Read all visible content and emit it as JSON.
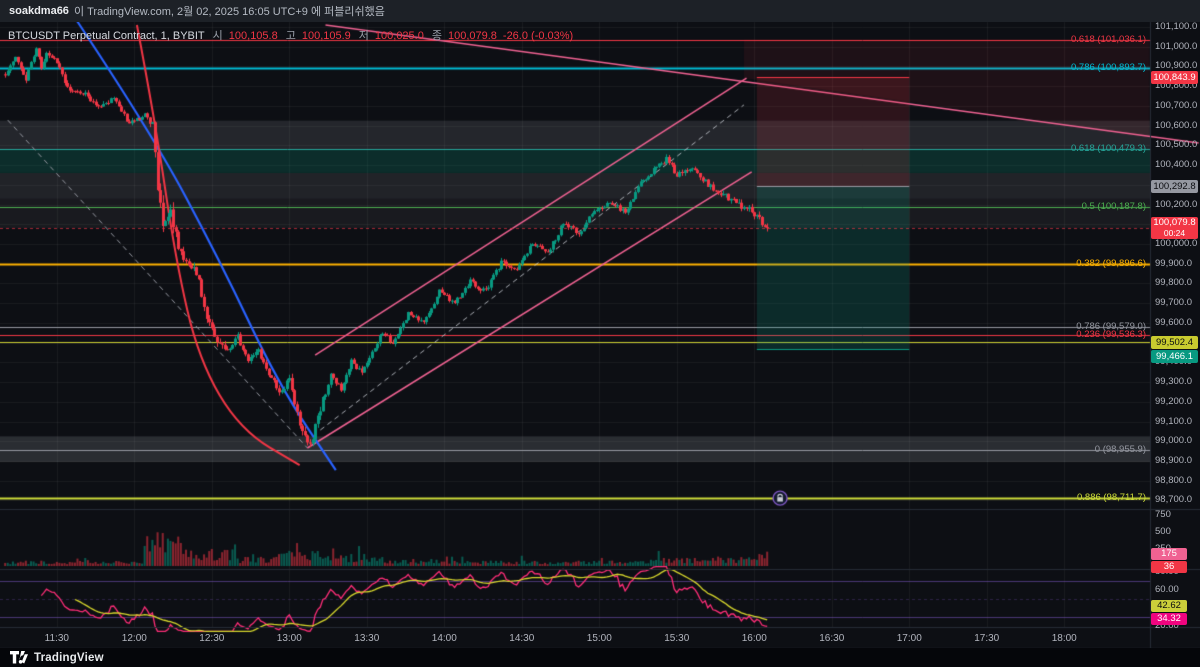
{
  "publish_bar": {
    "username": "soakdma66",
    "text": "이 TradingView.com, 2월 02, 2025 16:05 UTC+9 에 퍼블리쉬했음"
  },
  "legend": {
    "title": "BTCUSDT Perpetual Contract, 1, BYBIT",
    "open_label": "시",
    "open": "100,105.8",
    "high_label": "고",
    "high": "100,105.9",
    "low_label": "저",
    "low": "100,025.0",
    "close_label": "종",
    "close": "100,079.8",
    "change": "-26.0 (-0.03%)"
  },
  "footer": {
    "brand": "TradingView"
  },
  "icons": {
    "lock": "lock-icon",
    "logo": "tradingview-logo"
  },
  "chart_data": {
    "type": "candlestick",
    "symbol": "BTCUSDT",
    "interval": "1",
    "exchange": "BYBIT",
    "ohlc": {
      "open": 100105.8,
      "high": 100105.9,
      "low": 100025.0,
      "close": 100079.8,
      "change": -26.0,
      "change_pct": -0.03
    },
    "time_axis": {
      "labels": [
        "11:30",
        "12:00",
        "12:30",
        "13:00",
        "13:30",
        "14:00",
        "14:30",
        "15:00",
        "15:30",
        "16:00",
        "16:30",
        "17:00",
        "17:30",
        "18:00"
      ],
      "tlim": [
        -22,
        423.2
      ]
    },
    "price_axis": {
      "ylim": [
        98672,
        101110
      ],
      "labels": [
        "101,100.0",
        "101,000.0",
        "100,900.0",
        "100,800.0",
        "100,700.0",
        "100,600.0",
        "100,500.0",
        "100,400.0",
        "100,300.0",
        "100,200.0",
        "100,100.0",
        "100,000.0",
        "99,900.0",
        "99,800.0",
        "99,700.0",
        "99,600.0",
        "99,500.0",
        "99,400.0",
        "99,300.0",
        "99,200.0",
        "99,100.0",
        "99,000.0",
        "98,900.0",
        "98,800.0",
        "98,700.0"
      ],
      "badges": [
        {
          "label": "100,843.9",
          "price": 100843.9,
          "bg": "#f23645",
          "fg": "#ffffff"
        },
        {
          "label": "100,292.8",
          "price": 100292.8,
          "bg": "#9598a1",
          "fg": "#0b0c10"
        },
        {
          "label": "100,079.8",
          "price": 100079.8,
          "bg": "#f23645",
          "fg": "#ffffff",
          "countdown": "00:24"
        },
        {
          "label": "99,502.4",
          "price": 99502.4,
          "bg": "#c9cb2f",
          "fg": "#0b0c10"
        },
        {
          "label": "99,466.1",
          "price": 99466.1,
          "bg": "#089981",
          "fg": "#ffffff"
        }
      ]
    },
    "volume_axis": {
      "max": 800,
      "labels": [
        "750",
        "500",
        "250"
      ],
      "values": [
        750,
        500,
        250
      ],
      "badges": [
        {
          "label": "175",
          "v": 175,
          "bg": "#f06292",
          "fg": "#ffffff"
        },
        {
          "label": "36",
          "v": 36,
          "bg": "#f23645",
          "fg": "#ffffff"
        }
      ]
    },
    "rsi_axis": {
      "labels": [
        "80.00",
        "60.00",
        "40.00",
        "20.00"
      ],
      "values": [
        80,
        60,
        40,
        20
      ],
      "badges": [
        {
          "label": "42.62",
          "r": 42.62,
          "bg": "#cbcf3a",
          "fg": "#0b0c10"
        },
        {
          "label": "34.32",
          "r": 34.32,
          "bg": "#f0047f",
          "fg": "#ffffff"
        }
      ]
    },
    "fib_levels": [
      {
        "label": "0.618 (101,036.1)",
        "price": 101036.1,
        "color": "#f23645",
        "width": 1
      },
      {
        "label": "0.786 (100,893.7)",
        "price": 100893.7,
        "color": "#00bcd4",
        "width": 2
      },
      {
        "label": "0.618 (100,479.3)",
        "price": 100479.3,
        "color": "#26a69a",
        "width": 1
      },
      {
        "label": "0.5 (100,187.8)",
        "price": 100187.8,
        "color": "#4caf50",
        "width": 1
      },
      {
        "label": "0.382 (99,896.6)",
        "price": 99896.6,
        "color": "#ffb300",
        "width": 2
      },
      {
        "label": "0.786 (99,579.0)",
        "price": 99579.0,
        "color": "#9598a1",
        "width": 1
      },
      {
        "label": "0.236 (99,536.3)",
        "price": 99536.3,
        "color": "#f23645",
        "width": 1
      },
      {
        "label": "0 (98,955.9)",
        "price": 98955.9,
        "color": "#9598a1",
        "width": 1
      },
      {
        "label": "0.886 (98,711.7)",
        "price": 98711.7,
        "color": "#cddc39",
        "width": 2
      }
    ],
    "extra_lines": [
      {
        "price": 99502.4,
        "color": "#c9cb2f",
        "width": 1
      }
    ],
    "last_price": {
      "value": 100079.8,
      "color": "#f23645"
    },
    "zones": [
      {
        "from": 100479.3,
        "to": 100625,
        "color": "rgba(178,181,190,0.14)"
      },
      {
        "from": 100360,
        "to": 100479.3,
        "color": "rgba(8,153,129,0.22)"
      },
      {
        "from": 100230,
        "to": 100360,
        "color": "rgba(178,181,190,0.12)"
      },
      {
        "from": 100080,
        "to": 100230,
        "color": "rgba(178,181,190,0.07)"
      },
      {
        "from": 98895,
        "to": 99025,
        "color": "rgba(178,181,190,0.18)"
      }
    ],
    "position_tool": {
      "t_start": 271,
      "t_end": 330,
      "stop": 100843.9,
      "entry": 100292.8,
      "target": 99466.1,
      "stop_fill": "rgba(242,54,69,0.14)",
      "target_fill": "rgba(8,153,129,0.20)"
    },
    "drawings": {
      "channel": {
        "color": "#f06292",
        "upper": [
          [
            100,
            99437
          ],
          [
            267,
            100841
          ]
        ],
        "lower": [
          [
            97,
            98966
          ],
          [
            269,
            100365
          ]
        ],
        "median_dashed": [
          [
            102,
            99057
          ],
          [
            266,
            100705
          ]
        ]
      },
      "descending_dashed": [
        [
          -19,
          100628
        ],
        [
          97,
          98966
        ]
      ],
      "descending_trendline": {
        "color": "#f06292",
        "points": [
          [
            104,
            101110
          ],
          [
            442,
            100512
          ]
        ]
      },
      "wedge_fill": {
        "color": "rgba(242,54,69,0.08)",
        "points": [
          [
            266,
            101036
          ],
          [
            423,
            101036
          ],
          [
            423,
            100546
          ],
          [
            266,
            100841
          ]
        ]
      },
      "blue_curve": {
        "color": "#2962ff",
        "points": [
          [
            5,
            101186
          ],
          [
            36,
            100578
          ],
          [
            63,
            99919
          ],
          [
            86,
            99285
          ],
          [
            108,
            98854
          ]
        ]
      },
      "red_curve": {
        "color": "#f23645",
        "points": [
          [
            31,
            101110
          ],
          [
            38,
            100629
          ],
          [
            46,
            99919
          ],
          [
            55,
            99412
          ],
          [
            71,
            99057
          ],
          [
            94,
            98879
          ]
        ]
      }
    },
    "lock_icon": {
      "t": 280,
      "price": 98711.7
    },
    "price_path_anchors": [
      [
        -20,
        100860
      ],
      [
        -16,
        100950
      ],
      [
        -12,
        100840
      ],
      [
        -8,
        101000
      ],
      [
        -6,
        100900
      ],
      [
        -4,
        100960
      ],
      [
        0,
        100920
      ],
      [
        4,
        100790
      ],
      [
        10,
        100770
      ],
      [
        16,
        100690
      ],
      [
        22,
        100740
      ],
      [
        28,
        100610
      ],
      [
        34,
        100650
      ],
      [
        37,
        100600
      ],
      [
        39,
        100300
      ],
      [
        41,
        100120
      ],
      [
        44,
        100160
      ],
      [
        48,
        99950
      ],
      [
        54,
        99860
      ],
      [
        58,
        99620
      ],
      [
        62,
        99500
      ],
      [
        66,
        99450
      ],
      [
        70,
        99530
      ],
      [
        74,
        99400
      ],
      [
        78,
        99460
      ],
      [
        82,
        99340
      ],
      [
        86,
        99260
      ],
      [
        90,
        99310
      ],
      [
        94,
        99080
      ],
      [
        98,
        98985
      ],
      [
        102,
        99160
      ],
      [
        106,
        99350
      ],
      [
        110,
        99260
      ],
      [
        114,
        99410
      ],
      [
        118,
        99340
      ],
      [
        122,
        99460
      ],
      [
        126,
        99550
      ],
      [
        130,
        99500
      ],
      [
        136,
        99650
      ],
      [
        142,
        99600
      ],
      [
        148,
        99760
      ],
      [
        154,
        99700
      ],
      [
        160,
        99810
      ],
      [
        166,
        99760
      ],
      [
        172,
        99910
      ],
      [
        178,
        99860
      ],
      [
        184,
        100010
      ],
      [
        190,
        99950
      ],
      [
        196,
        100110
      ],
      [
        202,
        100060
      ],
      [
        208,
        100160
      ],
      [
        214,
        100210
      ],
      [
        220,
        100160
      ],
      [
        226,
        100310
      ],
      [
        232,
        100390
      ],
      [
        236,
        100430
      ],
      [
        240,
        100350
      ],
      [
        246,
        100390
      ],
      [
        252,
        100300
      ],
      [
        258,
        100250
      ],
      [
        264,
        100200
      ],
      [
        268,
        100180
      ],
      [
        272,
        100120
      ],
      [
        275,
        100080
      ]
    ],
    "candle_colors": {
      "up": "#089981",
      "down": "#f23645"
    },
    "rsi_colors": {
      "line": "#ff2d78",
      "ma": "#d6d62c"
    }
  }
}
